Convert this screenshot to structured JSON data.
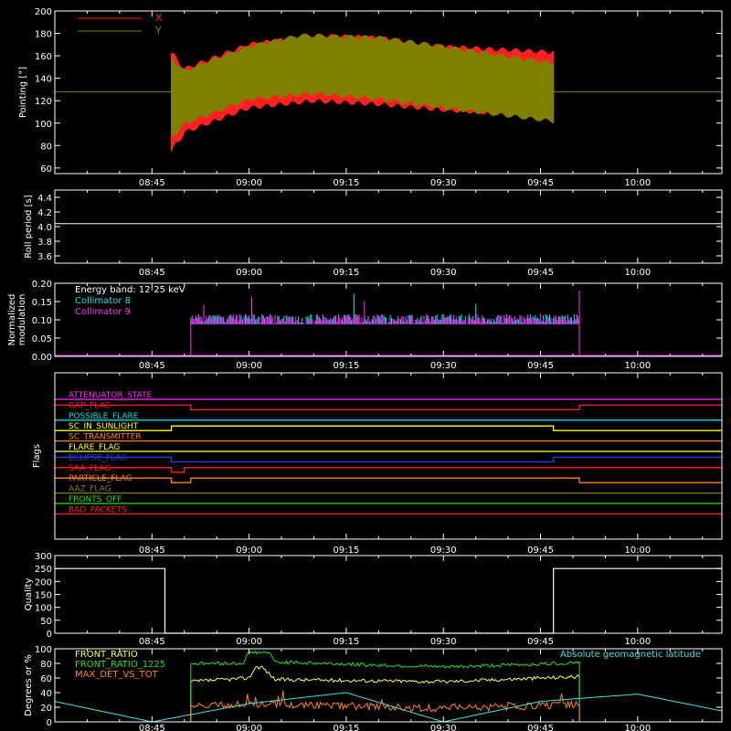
{
  "colors": {
    "axis": "#ffffff",
    "x": "#ff2020",
    "y": "#808000",
    "sunlight": "#ffff00",
    "c8": "#00e8e8",
    "c9": "#ff30ff",
    "ratio": "#ffff40",
    "ratio1225": "#20e020",
    "maxdet": "#ff8020",
    "lat": "#40e0e0"
  },
  "time_ticks": [
    "08:45",
    "09:00",
    "09:15",
    "09:30",
    "09:45",
    "10:00"
  ],
  "chart_data": [
    {
      "type": "line",
      "ylabel": "Pointing [°]",
      "ylim": [
        55,
        200
      ],
      "yticks": [
        "200",
        "180",
        "160",
        "140",
        "120",
        "100",
        "80",
        "60"
      ],
      "legend": [
        "X",
        "Y"
      ],
      "time_range": [
        "08:30",
        "10:13"
      ],
      "data_span": [
        "08:48",
        "09:47"
      ],
      "reference_y": 128,
      "envelope": {
        "X_upper": [
          [
            "08:48",
            165
          ],
          [
            "08:50",
            150
          ],
          [
            "09:00",
            172
          ],
          [
            "09:10",
            180
          ],
          [
            "09:20",
            178
          ],
          [
            "09:30",
            170
          ],
          [
            "09:47",
            165
          ]
        ],
        "X_lower": [
          [
            "08:48",
            72
          ],
          [
            "08:50",
            90
          ],
          [
            "09:00",
            112
          ],
          [
            "09:10",
            118
          ],
          [
            "09:20",
            115
          ],
          [
            "09:30",
            110
          ],
          [
            "09:47",
            104
          ]
        ],
        "Y_upper": [
          [
            "08:48",
            160
          ],
          [
            "08:50",
            148
          ],
          [
            "09:00",
            170
          ],
          [
            "09:08",
            180
          ],
          [
            "09:20",
            178
          ],
          [
            "09:30",
            170
          ],
          [
            "09:47",
            155
          ]
        ],
        "Y_lower": [
          [
            "08:48",
            85
          ],
          [
            "08:50",
            98
          ],
          [
            "09:00",
            120
          ],
          [
            "09:10",
            125
          ],
          [
            "09:20",
            120
          ],
          [
            "09:30",
            112
          ],
          [
            "09:47",
            100
          ]
        ]
      }
    },
    {
      "type": "line",
      "ylabel": "Roll period [s]",
      "ylim": [
        3.5,
        4.5
      ],
      "yticks": [
        "4.4",
        "4.2",
        "4.0",
        "3.8",
        "3.6"
      ],
      "value": 4.04
    },
    {
      "type": "line",
      "ylabel": "Normalized modulation",
      "ylim": [
        0,
        0.2
      ],
      "yticks": [
        "0.20",
        "0.15",
        "0.10",
        "0.05",
        "0.00"
      ],
      "legend": [
        "Energy band: 12-25 keV",
        "Collimator 8",
        "Collimator 9"
      ],
      "data_span": [
        "08:51",
        "09:51"
      ],
      "typical": 0.1,
      "max": 0.18
    },
    {
      "type": "line",
      "ylabel": "Flags",
      "flags": [
        {
          "name": "ATTENUATOR_STATE",
          "color": "#ff30ff",
          "state": [
            [
              "08:30",
              0
            ],
            [
              "10:13",
              0
            ]
          ]
        },
        {
          "name": "GAP_FLAG",
          "color": "#ff2020",
          "state": [
            [
              "08:30",
              1
            ],
            [
              "08:51",
              0
            ],
            [
              "09:51",
              1
            ]
          ]
        },
        {
          "name": "POSSIBLE_FLARE",
          "color": "#00e0e0",
          "state": [
            [
              "08:30",
              0
            ]
          ]
        },
        {
          "name": "SC_IN_SUNLIGHT",
          "color": "#ffff00",
          "state": [
            [
              "08:30",
              0
            ],
            [
              "08:48",
              1
            ],
            [
              "09:47",
              0
            ]
          ]
        },
        {
          "name": "SC_TRANSMITTER",
          "color": "#ff8020",
          "state": [
            [
              "08:30",
              0
            ]
          ]
        },
        {
          "name": "FLARE_FLAG",
          "color": "#ffff40",
          "state": [
            [
              "08:30",
              0
            ]
          ]
        },
        {
          "name": "ECLIPSE_FLAG",
          "color": "#2040ff",
          "state": [
            [
              "08:30",
              1
            ],
            [
              "08:48",
              0
            ],
            [
              "09:47",
              1
            ]
          ]
        },
        {
          "name": "SAA_FLAG",
          "color": "#ff2020",
          "state": [
            [
              "08:30",
              1
            ],
            [
              "08:48",
              0
            ],
            [
              "08:50",
              1
            ]
          ]
        },
        {
          "name": "PARTICLE_FLAG",
          "color": "#ff8020",
          "state": [
            [
              "08:30",
              1
            ],
            [
              "08:48",
              0
            ],
            [
              "08:51",
              1
            ],
            [
              "09:51",
              0
            ]
          ]
        },
        {
          "name": "AAZ_FLAG",
          "color": "#808000",
          "state": [
            [
              "08:30",
              0
            ]
          ]
        },
        {
          "name": "FRONTS_OFF",
          "color": "#20e020",
          "state": [
            [
              "08:30",
              0
            ]
          ]
        },
        {
          "name": "BAD_PACKETS",
          "color": "#ff2020",
          "state": [
            [
              "08:30",
              0
            ]
          ]
        }
      ]
    },
    {
      "type": "line",
      "ylabel": "Quality",
      "ylim": [
        0,
        300
      ],
      "yticks": [
        "300",
        "250",
        "200",
        "150",
        "100",
        "50",
        "0"
      ],
      "points": [
        [
          "08:30",
          250
        ],
        [
          "08:47",
          250
        ],
        [
          "08:47",
          0
        ],
        [
          "09:47",
          0
        ],
        [
          "09:47",
          250
        ],
        [
          "10:13",
          250
        ]
      ]
    },
    {
      "type": "line",
      "ylabel": "Degrees or %",
      "ylim": [
        0,
        100
      ],
      "yticks": [
        "100",
        "80",
        "60",
        "40",
        "20",
        "0"
      ],
      "legend": [
        "FRONT_RATIO",
        "FRONT_RATIO_1225",
        "MAX_DET_VS_TOT",
        "Absolute geomagnetic latitude"
      ],
      "series": [
        {
          "name": "FRONT_RATIO",
          "values": [
            [
              "08:51",
              55
            ],
            [
              "09:00",
              60
            ],
            [
              "09:01",
              75
            ],
            [
              "09:02",
              75
            ],
            [
              "09:04",
              58
            ],
            [
              "09:30",
              55
            ],
            [
              "09:45",
              60
            ],
            [
              "09:51",
              62
            ]
          ]
        },
        {
          "name": "FRONT_RATIO_1225",
          "values": [
            [
              "08:51",
              80
            ],
            [
              "08:59",
              80
            ],
            [
              "09:00",
              95
            ],
            [
              "09:03",
              95
            ],
            [
              "09:04",
              82
            ],
            [
              "09:30",
              75
            ],
            [
              "09:48",
              80
            ],
            [
              "09:51",
              82
            ]
          ]
        },
        {
          "name": "MAX_DET_VS_TOT",
          "values": [
            [
              "08:51",
              20
            ],
            [
              "09:00",
              25
            ],
            [
              "09:15",
              22
            ],
            [
              "09:30",
              18
            ],
            [
              "09:45",
              22
            ],
            [
              "09:51",
              25
            ]
          ]
        },
        {
          "name": "Absolute geomagnetic latitude",
          "values": [
            [
              "08:30",
              28
            ],
            [
              "08:45",
              0
            ],
            [
              "09:00",
              25
            ],
            [
              "09:15",
              40
            ],
            [
              "09:30",
              0
            ],
            [
              "09:45",
              28
            ],
            [
              "10:00",
              38
            ],
            [
              "10:13",
              15
            ]
          ]
        }
      ]
    }
  ]
}
